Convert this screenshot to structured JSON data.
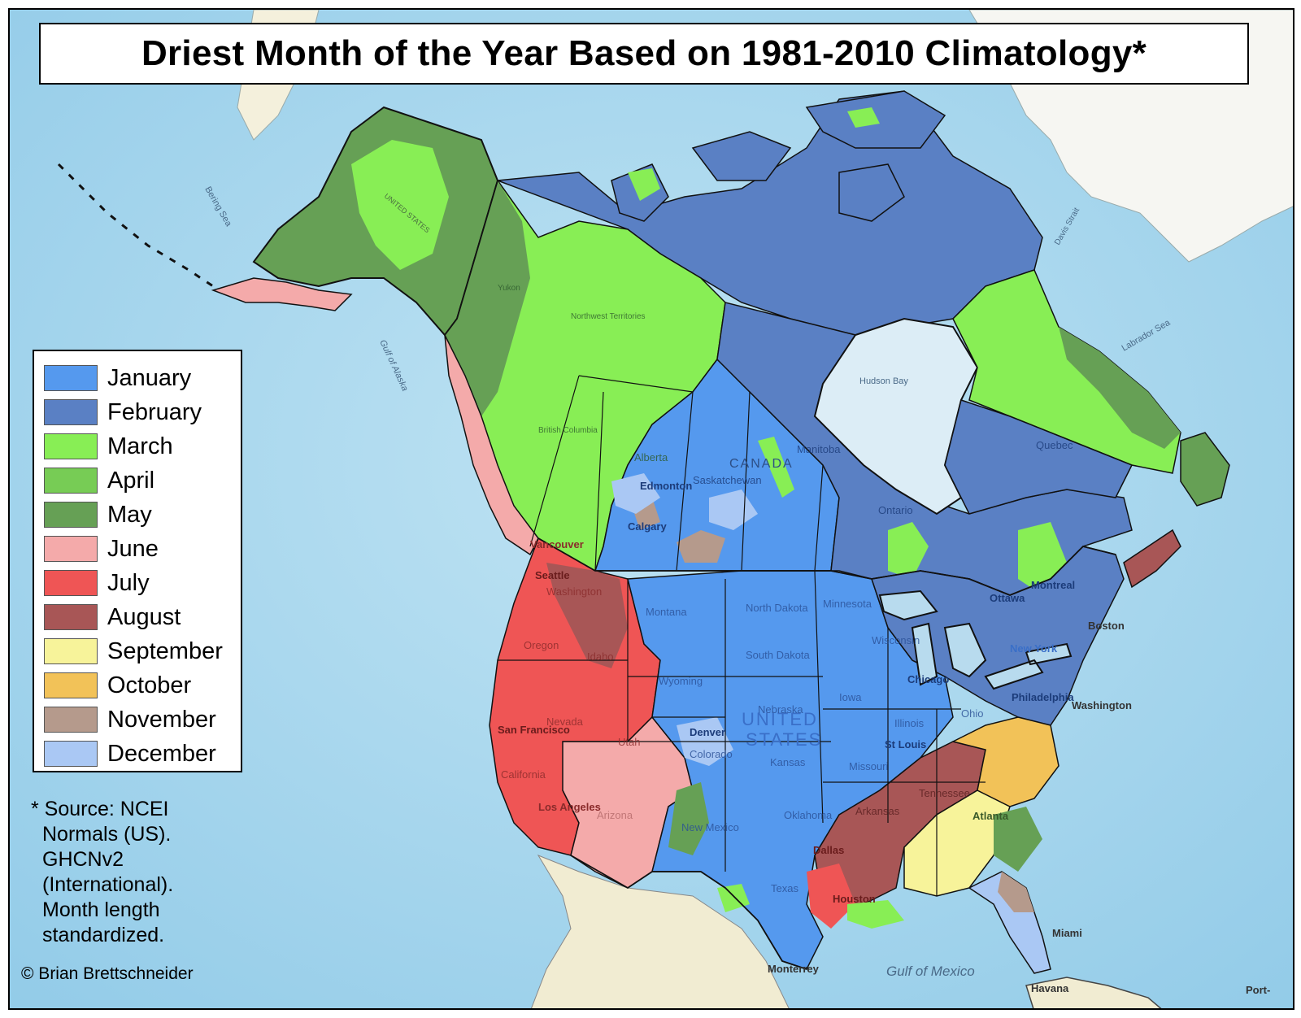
{
  "title": "Driest Month of the Year Based on 1981-2010 Climatology*",
  "legend": [
    {
      "label": "January",
      "color": "#5599ee"
    },
    {
      "label": "February",
      "color": "#5a80c4"
    },
    {
      "label": "March",
      "color": "#88ee55"
    },
    {
      "label": "April",
      "color": "#77cc55"
    },
    {
      "label": "May",
      "color": "#66a055"
    },
    {
      "label": "June",
      "color": "#f4aaaa"
    },
    {
      "label": "July",
      "color": "#ef5555"
    },
    {
      "label": "August",
      "color": "#a85656"
    },
    {
      "label": "September",
      "color": "#f7f39a"
    },
    {
      "label": "October",
      "color": "#f2c258"
    },
    {
      "label": "November",
      "color": "#b59a8c"
    },
    {
      "label": "December",
      "color": "#aac8f4"
    }
  ],
  "source_note": {
    "line1": "* Source: NCEI",
    "line2": "Normals (US).",
    "line3": "GHCNv2",
    "line4": "(International).",
    "line5": "Month length",
    "line6": "standardized."
  },
  "copyright": "© Brian Brettschneider",
  "map": {
    "ocean_color": "#a8d8ef",
    "land_outside_color": "#f4f0dc",
    "greenland_color": "#f6f6f2",
    "labels": {
      "canada": "CANADA",
      "united": "UNITED",
      "states": "STATES",
      "gulf_of_alaska": "Gulf of Alaska",
      "hudson_bay": "Hudson Bay",
      "labrador_sea": "Labrador Sea",
      "bering_sea": "Bering Sea",
      "gulf_of_mexico": "Gulf of Mexico",
      "davis_strait": "Davis Strait",
      "seattle": "Seattle",
      "vancouver": "Vancouver",
      "san_francisco": "San Francisco",
      "los_angeles": "Los Angeles",
      "denver": "Denver",
      "dallas": "Dallas",
      "houston": "Houston",
      "chicago": "Chicago",
      "st_louis": "St Louis",
      "atlanta": "Atlanta",
      "miami": "Miami",
      "boston": "Boston",
      "montreal": "Montreal",
      "ottawa": "Ottawa",
      "new_york": "New York",
      "philadelphia": "Philadelphia",
      "washington_dc": "Washington",
      "calgary": "Calgary",
      "edmonton": "Edmonton",
      "monterrey": "Monterrey",
      "havana": "Havana",
      "port": "Port-",
      "washington": "Washington",
      "oregon": "Oregon",
      "california": "California",
      "nevada": "Nevada",
      "idaho": "Idaho",
      "utah": "Utah",
      "arizona": "Arizona",
      "montana": "Montana",
      "wyoming": "Wyoming",
      "colorado": "Colorado",
      "new_mexico": "New Mexico",
      "north_dakota": "North Dakota",
      "south_dakota": "South Dakota",
      "nebraska": "Nebraska",
      "kansas": "Kansas",
      "oklahoma": "Oklahoma",
      "texas": "Texas",
      "minnesota": "Minnesota",
      "iowa": "Iowa",
      "missouri": "Missouri",
      "arkansas": "Arkansas",
      "wisconsin": "Wisconsin",
      "illinois": "Illinois",
      "ohio": "Ohio",
      "tennessee": "Tennessee",
      "alberta": "Alberta",
      "saskatchewan": "Saskatchewan",
      "manitoba": "Manitoba",
      "ontario": "Ontario",
      "quebec": "Quebec",
      "british_columbia": "British Columbia",
      "yukon": "Yukon",
      "northwest_territories": "Northwest Territories",
      "alaska_label": "UNITED STATES"
    }
  }
}
